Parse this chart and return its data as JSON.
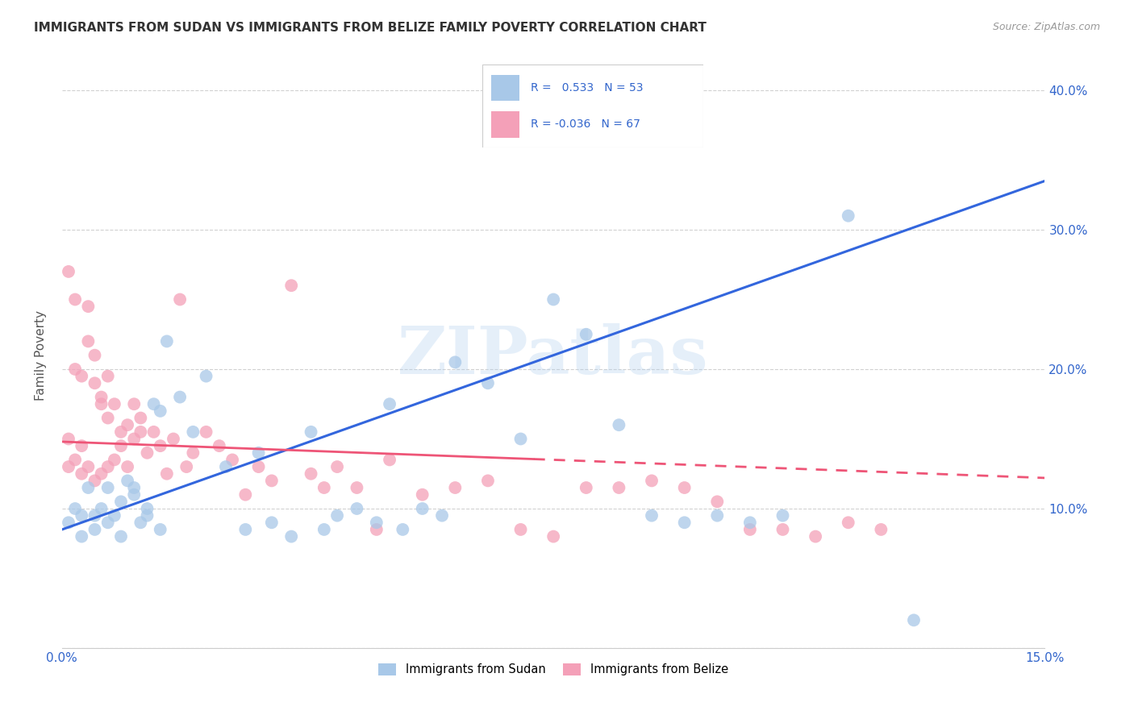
{
  "title": "IMMIGRANTS FROM SUDAN VS IMMIGRANTS FROM BELIZE FAMILY POVERTY CORRELATION CHART",
  "source": "Source: ZipAtlas.com",
  "ylabel": "Family Poverty",
  "xlim": [
    0.0,
    0.15
  ],
  "ylim": [
    0.0,
    0.42
  ],
  "sudan_color": "#a8c8e8",
  "belize_color": "#f4a0b8",
  "sudan_line_color": "#3366dd",
  "belize_line_color": "#ee5577",
  "sudan_R": 0.533,
  "sudan_N": 53,
  "belize_R": -0.036,
  "belize_N": 67,
  "watermark": "ZIPatlas",
  "sudan_line_x0": 0.0,
  "sudan_line_y0": 0.085,
  "sudan_line_x1": 0.15,
  "sudan_line_y1": 0.335,
  "belize_line_x0": 0.0,
  "belize_line_y0": 0.148,
  "belize_line_x1": 0.15,
  "belize_line_y1": 0.122,
  "sudan_x": [
    0.001,
    0.002,
    0.003,
    0.004,
    0.005,
    0.006,
    0.007,
    0.008,
    0.009,
    0.01,
    0.011,
    0.012,
    0.013,
    0.014,
    0.015,
    0.016,
    0.018,
    0.02,
    0.022,
    0.025,
    0.028,
    0.03,
    0.032,
    0.035,
    0.038,
    0.04,
    0.042,
    0.045,
    0.048,
    0.05,
    0.052,
    0.055,
    0.058,
    0.06,
    0.065,
    0.07,
    0.075,
    0.08,
    0.085,
    0.09,
    0.095,
    0.1,
    0.105,
    0.11,
    0.12,
    0.13,
    0.003,
    0.005,
    0.007,
    0.009,
    0.011,
    0.013,
    0.015
  ],
  "sudan_y": [
    0.09,
    0.1,
    0.095,
    0.115,
    0.085,
    0.1,
    0.115,
    0.095,
    0.105,
    0.12,
    0.11,
    0.09,
    0.1,
    0.175,
    0.17,
    0.22,
    0.18,
    0.155,
    0.195,
    0.13,
    0.085,
    0.14,
    0.09,
    0.08,
    0.155,
    0.085,
    0.095,
    0.1,
    0.09,
    0.175,
    0.085,
    0.1,
    0.095,
    0.205,
    0.19,
    0.15,
    0.25,
    0.225,
    0.16,
    0.095,
    0.09,
    0.095,
    0.09,
    0.095,
    0.31,
    0.02,
    0.08,
    0.095,
    0.09,
    0.08,
    0.115,
    0.095,
    0.085
  ],
  "belize_x": [
    0.001,
    0.001,
    0.002,
    0.002,
    0.003,
    0.003,
    0.004,
    0.004,
    0.005,
    0.005,
    0.006,
    0.006,
    0.007,
    0.007,
    0.008,
    0.008,
    0.009,
    0.009,
    0.01,
    0.01,
    0.011,
    0.011,
    0.012,
    0.012,
    0.013,
    0.014,
    0.015,
    0.016,
    0.017,
    0.018,
    0.019,
    0.02,
    0.022,
    0.024,
    0.026,
    0.028,
    0.03,
    0.032,
    0.035,
    0.038,
    0.04,
    0.042,
    0.045,
    0.048,
    0.05,
    0.055,
    0.06,
    0.065,
    0.07,
    0.075,
    0.08,
    0.085,
    0.09,
    0.095,
    0.1,
    0.105,
    0.11,
    0.115,
    0.12,
    0.125,
    0.001,
    0.002,
    0.003,
    0.004,
    0.005,
    0.006,
    0.007
  ],
  "belize_y": [
    0.27,
    0.15,
    0.25,
    0.2,
    0.195,
    0.145,
    0.245,
    0.22,
    0.19,
    0.21,
    0.175,
    0.18,
    0.165,
    0.195,
    0.175,
    0.135,
    0.145,
    0.155,
    0.13,
    0.16,
    0.175,
    0.15,
    0.165,
    0.155,
    0.14,
    0.155,
    0.145,
    0.125,
    0.15,
    0.25,
    0.13,
    0.14,
    0.155,
    0.145,
    0.135,
    0.11,
    0.13,
    0.12,
    0.26,
    0.125,
    0.115,
    0.13,
    0.115,
    0.085,
    0.135,
    0.11,
    0.115,
    0.12,
    0.085,
    0.08,
    0.115,
    0.115,
    0.12,
    0.115,
    0.105,
    0.085,
    0.085,
    0.08,
    0.09,
    0.085,
    0.13,
    0.135,
    0.125,
    0.13,
    0.12,
    0.125,
    0.13
  ]
}
